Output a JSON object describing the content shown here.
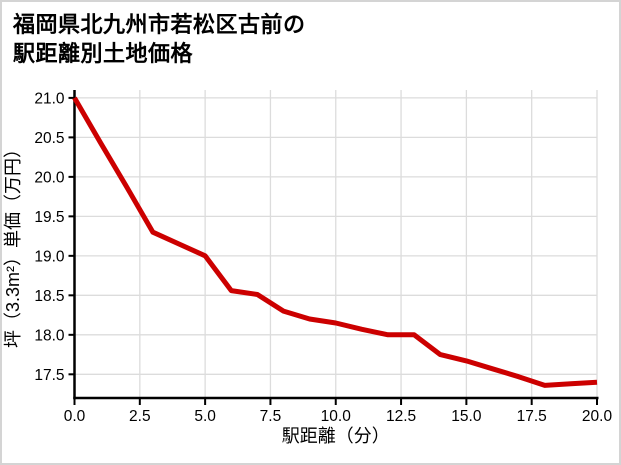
{
  "card": {
    "title_line1": "福岡県北九州市若松区古前の",
    "title_line2": "駅距離別土地価格"
  },
  "chart_data": {
    "type": "line",
    "title": "福岡県北九州市若松区古前の駅距離別土地価格",
    "xlabel": "駅距離（分）",
    "ylabel": "坪（3.3m²）単価（万円）",
    "x": [
      0,
      1,
      2,
      3,
      4,
      5,
      6,
      7,
      8,
      9,
      10,
      11,
      12,
      13,
      14,
      15,
      16,
      17,
      18,
      19,
      20
    ],
    "values": [
      21.0,
      20.43,
      19.87,
      19.3,
      19.15,
      19.0,
      18.56,
      18.51,
      18.3,
      18.2,
      18.15,
      18.07,
      18.0,
      18.0,
      17.75,
      17.67,
      17.57,
      17.47,
      17.36,
      17.38,
      17.4
    ],
    "x_tick_values": [
      0,
      2.5,
      5,
      7.5,
      10,
      12.5,
      15,
      17.5,
      20
    ],
    "x_tick_labels": [
      "0.0",
      "2.5",
      "5.0",
      "7.5",
      "10.0",
      "12.5",
      "15.0",
      "17.5",
      "20.0"
    ],
    "y_tick_values": [
      17.5,
      18.0,
      18.5,
      19.0,
      19.5,
      20.0,
      20.5,
      21.0
    ],
    "y_tick_labels": [
      "17.5",
      "18.0",
      "18.5",
      "19.0",
      "19.5",
      "20.0",
      "20.5",
      "21.0"
    ],
    "xlim": [
      0,
      20
    ],
    "ylim": [
      17.2,
      21.1
    ],
    "grid": true,
    "legend": false,
    "line_color": "#cc0000",
    "grid_color": "#dcdcdc",
    "axis_color": "#000000",
    "text_color": "#000000"
  }
}
